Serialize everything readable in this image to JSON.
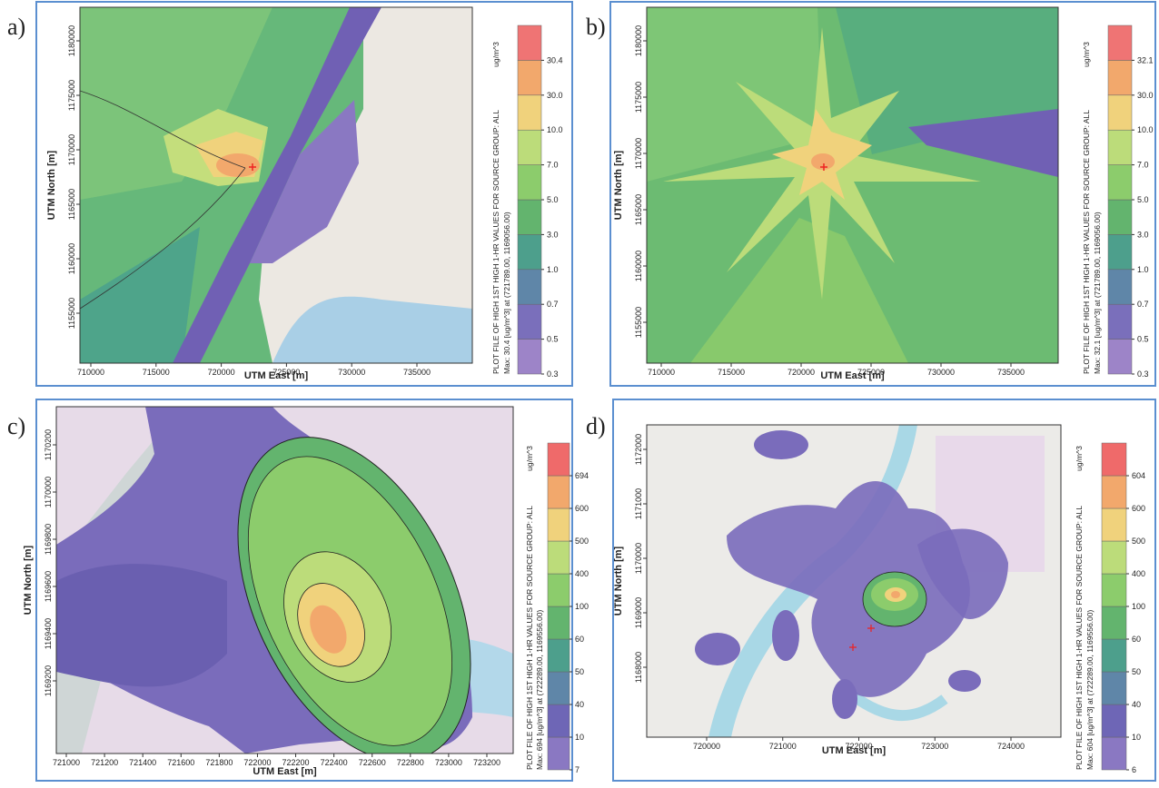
{
  "panels": [
    {
      "label": "a)",
      "x_axis_title": "UTM East [m]",
      "y_axis_title": "UTM North [m]",
      "x_ticks": [
        710000,
        715000,
        720000,
        725000,
        730000,
        735000
      ],
      "y_ticks": [
        1180000,
        1175000,
        1170000,
        1165000,
        1160000,
        1155000
      ],
      "colorbar": {
        "unit": "ug/m^3",
        "levels": [
          0.3,
          0.5,
          0.7,
          {
            "value": 1,
            "label": "1.0"
          },
          {
            "value": 3,
            "label": "3.0"
          },
          {
            "value": 5,
            "label": "5.0"
          },
          {
            "value": 7,
            "label": "7.0"
          },
          {
            "value": 10,
            "label": "10.0"
          },
          {
            "value": 30,
            "label": "30.0"
          },
          30.4
        ],
        "colors": [
          "#9d84c8",
          "#7a6fbb",
          "#5f86a8",
          "#4d9f8c",
          "#63b46e",
          "#8ccc6c",
          "#bcdc7a",
          "#f0d27c",
          "#f2a86c",
          "#ef7474"
        ]
      },
      "plot_title": "PLOT FILE OF HIGH 1ST HIGH 1-HR VALUES FOR SOURCE GROUP: ALL",
      "max_note": "Max: 30.4  [ug/m^3]  at  (721789.00, 1169056.00)"
    },
    {
      "label": "b)",
      "x_axis_title": "UTM East [m]",
      "y_axis_title": "UTM North [m]",
      "x_ticks": [
        710000,
        715000,
        720000,
        725000,
        730000,
        735000
      ],
      "y_ticks": [
        1180000,
        1175000,
        1170000,
        1165000,
        1160000,
        1155000
      ],
      "colorbar": {
        "unit": "ug/m^3",
        "levels": [
          0.3,
          0.5,
          0.7,
          {
            "value": 1,
            "label": "1.0"
          },
          {
            "value": 3,
            "label": "3.0"
          },
          {
            "value": 5,
            "label": "5.0"
          },
          {
            "value": 7,
            "label": "7.0"
          },
          {
            "value": 10,
            "label": "10.0"
          },
          {
            "value": 30,
            "label": "30.0"
          },
          32.1
        ],
        "colors": [
          "#9d84c8",
          "#7a6fbb",
          "#5f86a8",
          "#4d9f8c",
          "#63b46e",
          "#8ccc6c",
          "#bcdc7a",
          "#f0d27c",
          "#f2a86c",
          "#ef7474"
        ]
      },
      "plot_title": "PLOT FILE OF HIGH 1ST HIGH 1-HR VALUES FOR SOURCE GROUP: ALL",
      "max_note": "Max: 32.1  [ug/m^3]  at  (721789.00, 1169056.00)"
    },
    {
      "label": "c)",
      "x_axis_title": "UTM East [m]",
      "y_axis_title": "UTM North [m]",
      "x_ticks": [
        721000,
        721200,
        721400,
        721600,
        721800,
        722000,
        722200,
        722400,
        722600,
        722800,
        723000,
        723200
      ],
      "y_ticks": [
        1170200,
        1170000,
        1169800,
        1169600,
        1169400,
        1169200
      ],
      "colorbar": {
        "unit": "ug/m^3",
        "levels": [
          7,
          10,
          40,
          50,
          60,
          100,
          400,
          500,
          600,
          694
        ],
        "colors": [
          "#8a78c2",
          "#6e66b6",
          "#5f86a8",
          "#4d9f8c",
          "#63b46e",
          "#8ccc6c",
          "#bcdc7a",
          "#f0d27c",
          "#f2a86c",
          "#ef6a6a"
        ]
      },
      "plot_title": "PLOT FILE OF HIGH 1ST HIGH 1-HR VALUES FOR SOURCE GROUP: ALL",
      "max_note": "Max: 694  [ug/m^3]  at  (722289.00, 1169556.00)"
    },
    {
      "label": "d)",
      "x_axis_title": "UTM East [m]",
      "y_axis_title": "UTM North [m]",
      "x_ticks": [
        720000,
        721000,
        722000,
        723000,
        724000
      ],
      "y_ticks": [
        1172000,
        1171000,
        1170000,
        1169000,
        1168000
      ],
      "colorbar": {
        "unit": "ug/m^3",
        "levels": [
          6,
          10,
          40,
          50,
          60,
          100,
          400,
          500,
          600,
          604
        ],
        "colors": [
          "#8a78c2",
          "#6e66b6",
          "#5f86a8",
          "#4d9f8c",
          "#63b46e",
          "#8ccc6c",
          "#bcdc7a",
          "#f0d27c",
          "#f2a86c",
          "#ef6a6a"
        ]
      },
      "plot_title": "PLOT FILE OF HIGH 1ST HIGH 1-HR VALUES FOR SOURCE GROUP: ALL",
      "max_note": "Max: 604  [ug/m^3]  at  (722289.00, 1169556.00)"
    }
  ]
}
